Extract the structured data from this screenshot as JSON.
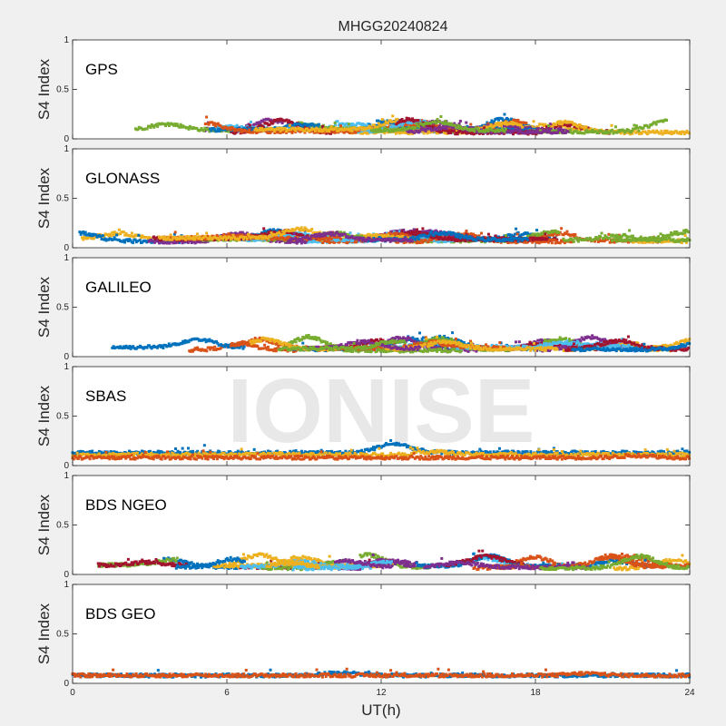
{
  "figure": {
    "title": "MHGG20240824",
    "watermark": "IONISE",
    "xlabel": "UT(h)",
    "ylabel": "S4 Index",
    "xticks": [
      "0",
      "6",
      "12",
      "18",
      "24"
    ],
    "yticks": [
      "0",
      "0.5",
      "1"
    ],
    "colors": {
      "background": "#f0f0f0",
      "axes": "#ffffff",
      "series": [
        "#0072bd",
        "#d95319",
        "#edb120",
        "#7e2f8e",
        "#77ac30",
        "#4dbeee",
        "#a2142f"
      ]
    }
  },
  "chart_data": [
    {
      "type": "scatter",
      "title": "GPS",
      "x_range": [
        0,
        24
      ],
      "ylim": [
        0,
        1
      ],
      "typical_s4": 0.08,
      "max_s4": 0.2,
      "series_count": 7
    },
    {
      "type": "scatter",
      "title": "GLONASS",
      "x_range": [
        0,
        24
      ],
      "ylim": [
        0,
        1
      ],
      "typical_s4": 0.08,
      "max_s4": 0.25,
      "series_count": 7
    },
    {
      "type": "scatter",
      "title": "GALILEO",
      "x_range": [
        0,
        24
      ],
      "ylim": [
        0,
        1
      ],
      "typical_s4": 0.08,
      "max_s4": 0.22,
      "series_count": 7
    },
    {
      "type": "scatter",
      "title": "SBAS",
      "x_range": [
        0,
        24
      ],
      "ylim": [
        0,
        1
      ],
      "series": [
        {
          "color": "#0072bd",
          "base_s4": 0.13,
          "peak_s4": 0.22,
          "peak_hour": 12.5
        },
        {
          "color": "#edb120",
          "base_s4": 0.11,
          "peak_s4": 0.14,
          "peak_hour": 14
        },
        {
          "color": "#d95319",
          "base_s4": 0.08,
          "peak_s4": 0.1,
          "peak_hour": 22
        }
      ]
    },
    {
      "type": "scatter",
      "title": "BDS NGEO",
      "x_range": [
        0,
        24
      ],
      "ylim": [
        0,
        1
      ],
      "typical_s4": 0.08,
      "max_s4": 0.2,
      "series_count": 7
    },
    {
      "type": "scatter",
      "title": "BDS GEO",
      "x_range": [
        0,
        24
      ],
      "ylim": [
        0,
        1
      ],
      "series": [
        {
          "color": "#0072bd",
          "base_s4": 0.08,
          "peak_s4": 0.11,
          "peak_hour": 10.5
        },
        {
          "color": "#d95319",
          "base_s4": 0.08,
          "peak_s4": 0.1,
          "peak_hour": 20
        }
      ]
    }
  ]
}
